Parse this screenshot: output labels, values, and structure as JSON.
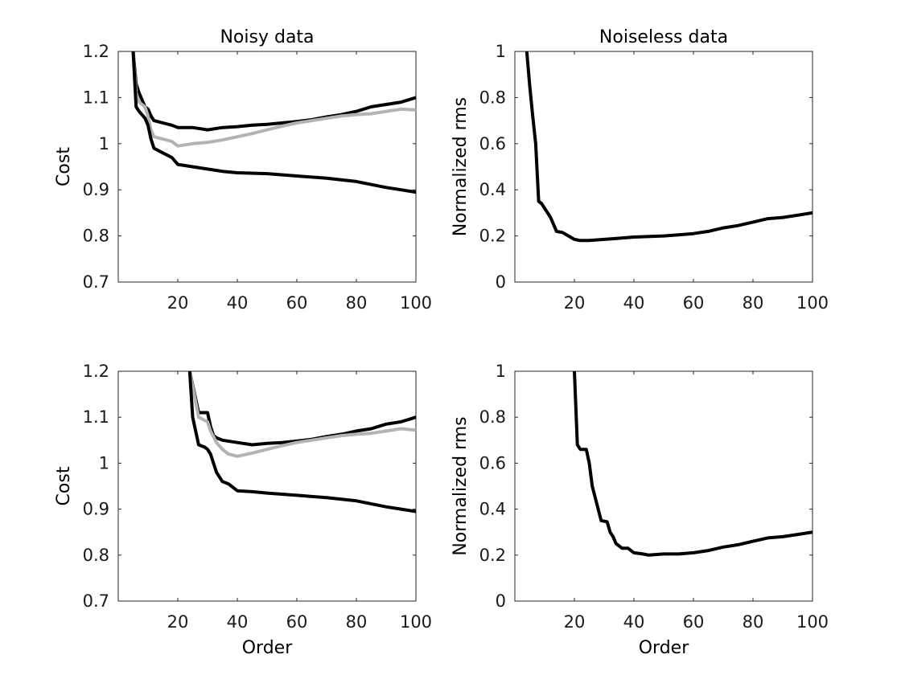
{
  "chart_data": [
    {
      "type": "line",
      "title": "Noisy data",
      "xlabel": "",
      "ylabel": "Cost",
      "xlim": [
        0,
        100
      ],
      "ylim": [
        0.7,
        1.2
      ],
      "xticks": [
        20,
        40,
        60,
        80,
        100
      ],
      "yticks": [
        0.7,
        0.8,
        0.9,
        1,
        1.1,
        1.2
      ],
      "xtick_labels": [
        "20",
        "40",
        "60",
        "80",
        100
      ],
      "ytick_labels": [
        "0.7",
        "0.8",
        "0.9",
        "1",
        "1.1",
        "1.2"
      ],
      "grid": false,
      "series": [
        {
          "color": "#000000",
          "points": [
            [
              5,
              1.2
            ],
            [
              6,
              1.13
            ],
            [
              7,
              1.11
            ],
            [
              9,
              1.08
            ],
            [
              10,
              1.075
            ],
            [
              11,
              1.06
            ],
            [
              12,
              1.05
            ],
            [
              15,
              1.045
            ],
            [
              18,
              1.04
            ],
            [
              20,
              1.035
            ],
            [
              25,
              1.035
            ],
            [
              30,
              1.03
            ],
            [
              35,
              1.035
            ],
            [
              40,
              1.037
            ],
            [
              45,
              1.04
            ],
            [
              50,
              1.042
            ],
            [
              55,
              1.045
            ],
            [
              60,
              1.048
            ],
            [
              65,
              1.052
            ],
            [
              70,
              1.058
            ],
            [
              75,
              1.063
            ],
            [
              80,
              1.07
            ],
            [
              85,
              1.08
            ],
            [
              90,
              1.085
            ],
            [
              95,
              1.09
            ],
            [
              100,
              1.1
            ]
          ]
        },
        {
          "color": "#b3b3b3",
          "points": [
            [
              5,
              1.2
            ],
            [
              6,
              1.11
            ],
            [
              7,
              1.09
            ],
            [
              9,
              1.08
            ],
            [
              10,
              1.06
            ],
            [
              11,
              1.03
            ],
            [
              12,
              1.015
            ],
            [
              15,
              1.01
            ],
            [
              18,
              1.005
            ],
            [
              20,
              0.995
            ],
            [
              25,
              1.0
            ],
            [
              30,
              1.003
            ],
            [
              35,
              1.008
            ],
            [
              40,
              1.015
            ],
            [
              45,
              1.022
            ],
            [
              50,
              1.03
            ],
            [
              55,
              1.038
            ],
            [
              60,
              1.045
            ],
            [
              65,
              1.05
            ],
            [
              70,
              1.055
            ],
            [
              75,
              1.06
            ],
            [
              80,
              1.063
            ],
            [
              85,
              1.065
            ],
            [
              90,
              1.07
            ],
            [
              95,
              1.075
            ],
            [
              100,
              1.073
            ]
          ]
        },
        {
          "color": "#000000",
          "points": [
            [
              5,
              1.2
            ],
            [
              6,
              1.08
            ],
            [
              7,
              1.07
            ],
            [
              9,
              1.055
            ],
            [
              10,
              1.04
            ],
            [
              11,
              1.01
            ],
            [
              12,
              0.99
            ],
            [
              15,
              0.98
            ],
            [
              18,
              0.97
            ],
            [
              20,
              0.955
            ],
            [
              25,
              0.95
            ],
            [
              30,
              0.945
            ],
            [
              35,
              0.94
            ],
            [
              40,
              0.937
            ],
            [
              50,
              0.935
            ],
            [
              60,
              0.93
            ],
            [
              70,
              0.925
            ],
            [
              80,
              0.918
            ],
            [
              90,
              0.905
            ],
            [
              95,
              0.9
            ],
            [
              100,
              0.895
            ]
          ]
        }
      ]
    },
    {
      "type": "line",
      "title": "Noiseless data",
      "xlabel": "",
      "ylabel": "Normalized rms",
      "xlim": [
        0,
        100
      ],
      "ylim": [
        0,
        1
      ],
      "xticks": [
        20,
        40,
        60,
        80,
        100
      ],
      "yticks": [
        0,
        0.2,
        0.4,
        0.6,
        0.8,
        1
      ],
      "xtick_labels": [
        "20",
        "40",
        "60",
        "80",
        100
      ],
      "ytick_labels": [
        "0",
        "0.2",
        "0.4",
        "0.6",
        "0.8",
        "1"
      ],
      "grid": false,
      "series": [
        {
          "color": "#000000",
          "points": [
            [
              4,
              1.0
            ],
            [
              5,
              0.85
            ],
            [
              6,
              0.72
            ],
            [
              7,
              0.6
            ],
            [
              8,
              0.35
            ],
            [
              9,
              0.34
            ],
            [
              10,
              0.32
            ],
            [
              11,
              0.3
            ],
            [
              12,
              0.28
            ],
            [
              13,
              0.25
            ],
            [
              14,
              0.22
            ],
            [
              16,
              0.215
            ],
            [
              18,
              0.2
            ],
            [
              20,
              0.185
            ],
            [
              22,
              0.18
            ],
            [
              25,
              0.18
            ],
            [
              30,
              0.185
            ],
            [
              35,
              0.19
            ],
            [
              40,
              0.195
            ],
            [
              50,
              0.2
            ],
            [
              55,
              0.205
            ],
            [
              60,
              0.21
            ],
            [
              65,
              0.22
            ],
            [
              70,
              0.235
            ],
            [
              75,
              0.245
            ],
            [
              80,
              0.26
            ],
            [
              85,
              0.275
            ],
            [
              90,
              0.28
            ],
            [
              95,
              0.29
            ],
            [
              100,
              0.3
            ]
          ]
        }
      ]
    },
    {
      "type": "line",
      "title": "",
      "xlabel": "Order",
      "ylabel": "Cost",
      "xlim": [
        0,
        100
      ],
      "ylim": [
        0.7,
        1.2
      ],
      "xticks": [
        20,
        40,
        60,
        80,
        100
      ],
      "yticks": [
        0.7,
        0.8,
        0.9,
        1,
        1.1,
        1.2
      ],
      "xtick_labels": [
        "20",
        "40",
        "60",
        "80",
        100
      ],
      "ytick_labels": [
        "0.7",
        "0.8",
        "0.9",
        "1",
        "1.1",
        "1.2"
      ],
      "grid": false,
      "series": [
        {
          "color": "#000000",
          "points": [
            [
              24,
              1.2
            ],
            [
              27,
              1.11
            ],
            [
              30,
              1.11
            ],
            [
              31,
              1.08
            ],
            [
              32,
              1.06
            ],
            [
              33,
              1.055
            ],
            [
              35,
              1.05
            ],
            [
              40,
              1.045
            ],
            [
              45,
              1.04
            ],
            [
              50,
              1.043
            ],
            [
              55,
              1.045
            ],
            [
              60,
              1.048
            ],
            [
              65,
              1.052
            ],
            [
              70,
              1.058
            ],
            [
              75,
              1.063
            ],
            [
              80,
              1.07
            ],
            [
              85,
              1.075
            ],
            [
              90,
              1.085
            ],
            [
              95,
              1.09
            ],
            [
              100,
              1.1
            ]
          ]
        },
        {
          "color": "#b3b3b3",
          "points": [
            [
              24,
              1.2
            ],
            [
              27,
              1.1
            ],
            [
              30,
              1.09
            ],
            [
              31,
              1.07
            ],
            [
              33,
              1.045
            ],
            [
              35,
              1.03
            ],
            [
              37,
              1.02
            ],
            [
              40,
              1.015
            ],
            [
              45,
              1.022
            ],
            [
              50,
              1.03
            ],
            [
              55,
              1.038
            ],
            [
              60,
              1.045
            ],
            [
              65,
              1.05
            ],
            [
              70,
              1.055
            ],
            [
              75,
              1.06
            ],
            [
              80,
              1.063
            ],
            [
              85,
              1.065
            ],
            [
              90,
              1.07
            ],
            [
              95,
              1.075
            ],
            [
              100,
              1.072
            ]
          ]
        },
        {
          "color": "#000000",
          "points": [
            [
              24,
              1.2
            ],
            [
              25,
              1.1
            ],
            [
              27,
              1.04
            ],
            [
              29,
              1.035
            ],
            [
              30,
              1.03
            ],
            [
              31,
              1.02
            ],
            [
              32,
              1.0
            ],
            [
              33,
              0.98
            ],
            [
              35,
              0.96
            ],
            [
              37,
              0.955
            ],
            [
              40,
              0.94
            ],
            [
              45,
              0.938
            ],
            [
              50,
              0.935
            ],
            [
              60,
              0.93
            ],
            [
              70,
              0.925
            ],
            [
              80,
              0.918
            ],
            [
              90,
              0.905
            ],
            [
              95,
              0.9
            ],
            [
              100,
              0.895
            ]
          ]
        }
      ]
    },
    {
      "type": "line",
      "title": "",
      "xlabel": "Order",
      "ylabel": "Normalized rms",
      "xlim": [
        0,
        100
      ],
      "ylim": [
        0,
        1
      ],
      "xticks": [
        20,
        40,
        60,
        80,
        100
      ],
      "yticks": [
        0,
        0.2,
        0.4,
        0.6,
        0.8,
        1
      ],
      "xtick_labels": [
        "20",
        "40",
        "60",
        "80",
        100
      ],
      "ytick_labels": [
        "0",
        "0.2",
        "0.4",
        "0.6",
        "0.8",
        "1"
      ],
      "grid": false,
      "series": [
        {
          "color": "#000000",
          "points": [
            [
              20,
              1.0
            ],
            [
              21,
              0.68
            ],
            [
              22,
              0.66
            ],
            [
              24,
              0.66
            ],
            [
              25,
              0.6
            ],
            [
              26,
              0.5
            ],
            [
              27,
              0.45
            ],
            [
              28,
              0.4
            ],
            [
              29,
              0.35
            ],
            [
              31,
              0.345
            ],
            [
              32,
              0.3
            ],
            [
              33,
              0.28
            ],
            [
              34,
              0.25
            ],
            [
              36,
              0.23
            ],
            [
              38,
              0.23
            ],
            [
              40,
              0.21
            ],
            [
              43,
              0.205
            ],
            [
              45,
              0.2
            ],
            [
              50,
              0.205
            ],
            [
              55,
              0.205
            ],
            [
              60,
              0.21
            ],
            [
              65,
              0.22
            ],
            [
              70,
              0.235
            ],
            [
              75,
              0.245
            ],
            [
              80,
              0.26
            ],
            [
              85,
              0.275
            ],
            [
              90,
              0.28
            ],
            [
              95,
              0.29
            ],
            [
              100,
              0.3
            ]
          ]
        }
      ]
    }
  ]
}
